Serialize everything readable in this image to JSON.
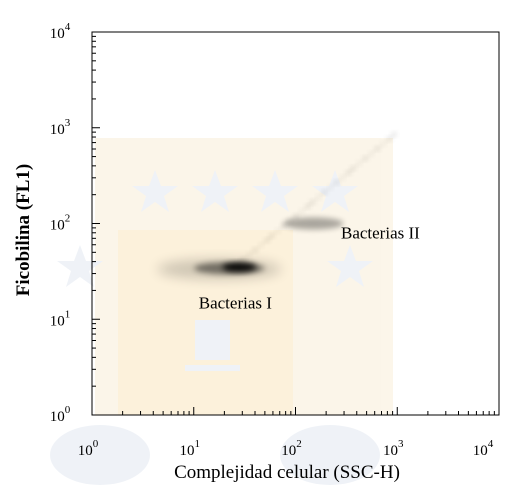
{
  "chart_data": {
    "type": "scatter",
    "xlabel": "Complejidad celular (SSC-H)",
    "ylabel": "Ficobilina (FL1)",
    "x_scale": "log",
    "y_scale": "log",
    "xlim": [
      1,
      10000
    ],
    "ylim": [
      1,
      10000
    ],
    "x_ticks": [
      {
        "base": "10",
        "exp": "0"
      },
      {
        "base": "10",
        "exp": "1"
      },
      {
        "base": "10",
        "exp": "2"
      },
      {
        "base": "10",
        "exp": "3"
      },
      {
        "base": "10",
        "exp": "4"
      }
    ],
    "y_ticks": [
      {
        "base": "10",
        "exp": "0"
      },
      {
        "base": "10",
        "exp": "1"
      },
      {
        "base": "10",
        "exp": "2"
      },
      {
        "base": "10",
        "exp": "3"
      },
      {
        "base": "10",
        "exp": "4"
      }
    ],
    "grid": false,
    "populations": [
      {
        "name": "Bacterias I",
        "x_center": 25,
        "y_center": 35
      },
      {
        "name": "Bacterias II",
        "x_center": 150,
        "y_center": 100
      }
    ],
    "annotations": [
      {
        "text": "Bacterias I",
        "x": 10,
        "y": 13
      },
      {
        "text": "Bacterias II",
        "x": 250,
        "y": 70
      }
    ],
    "point_color": "#000000"
  }
}
